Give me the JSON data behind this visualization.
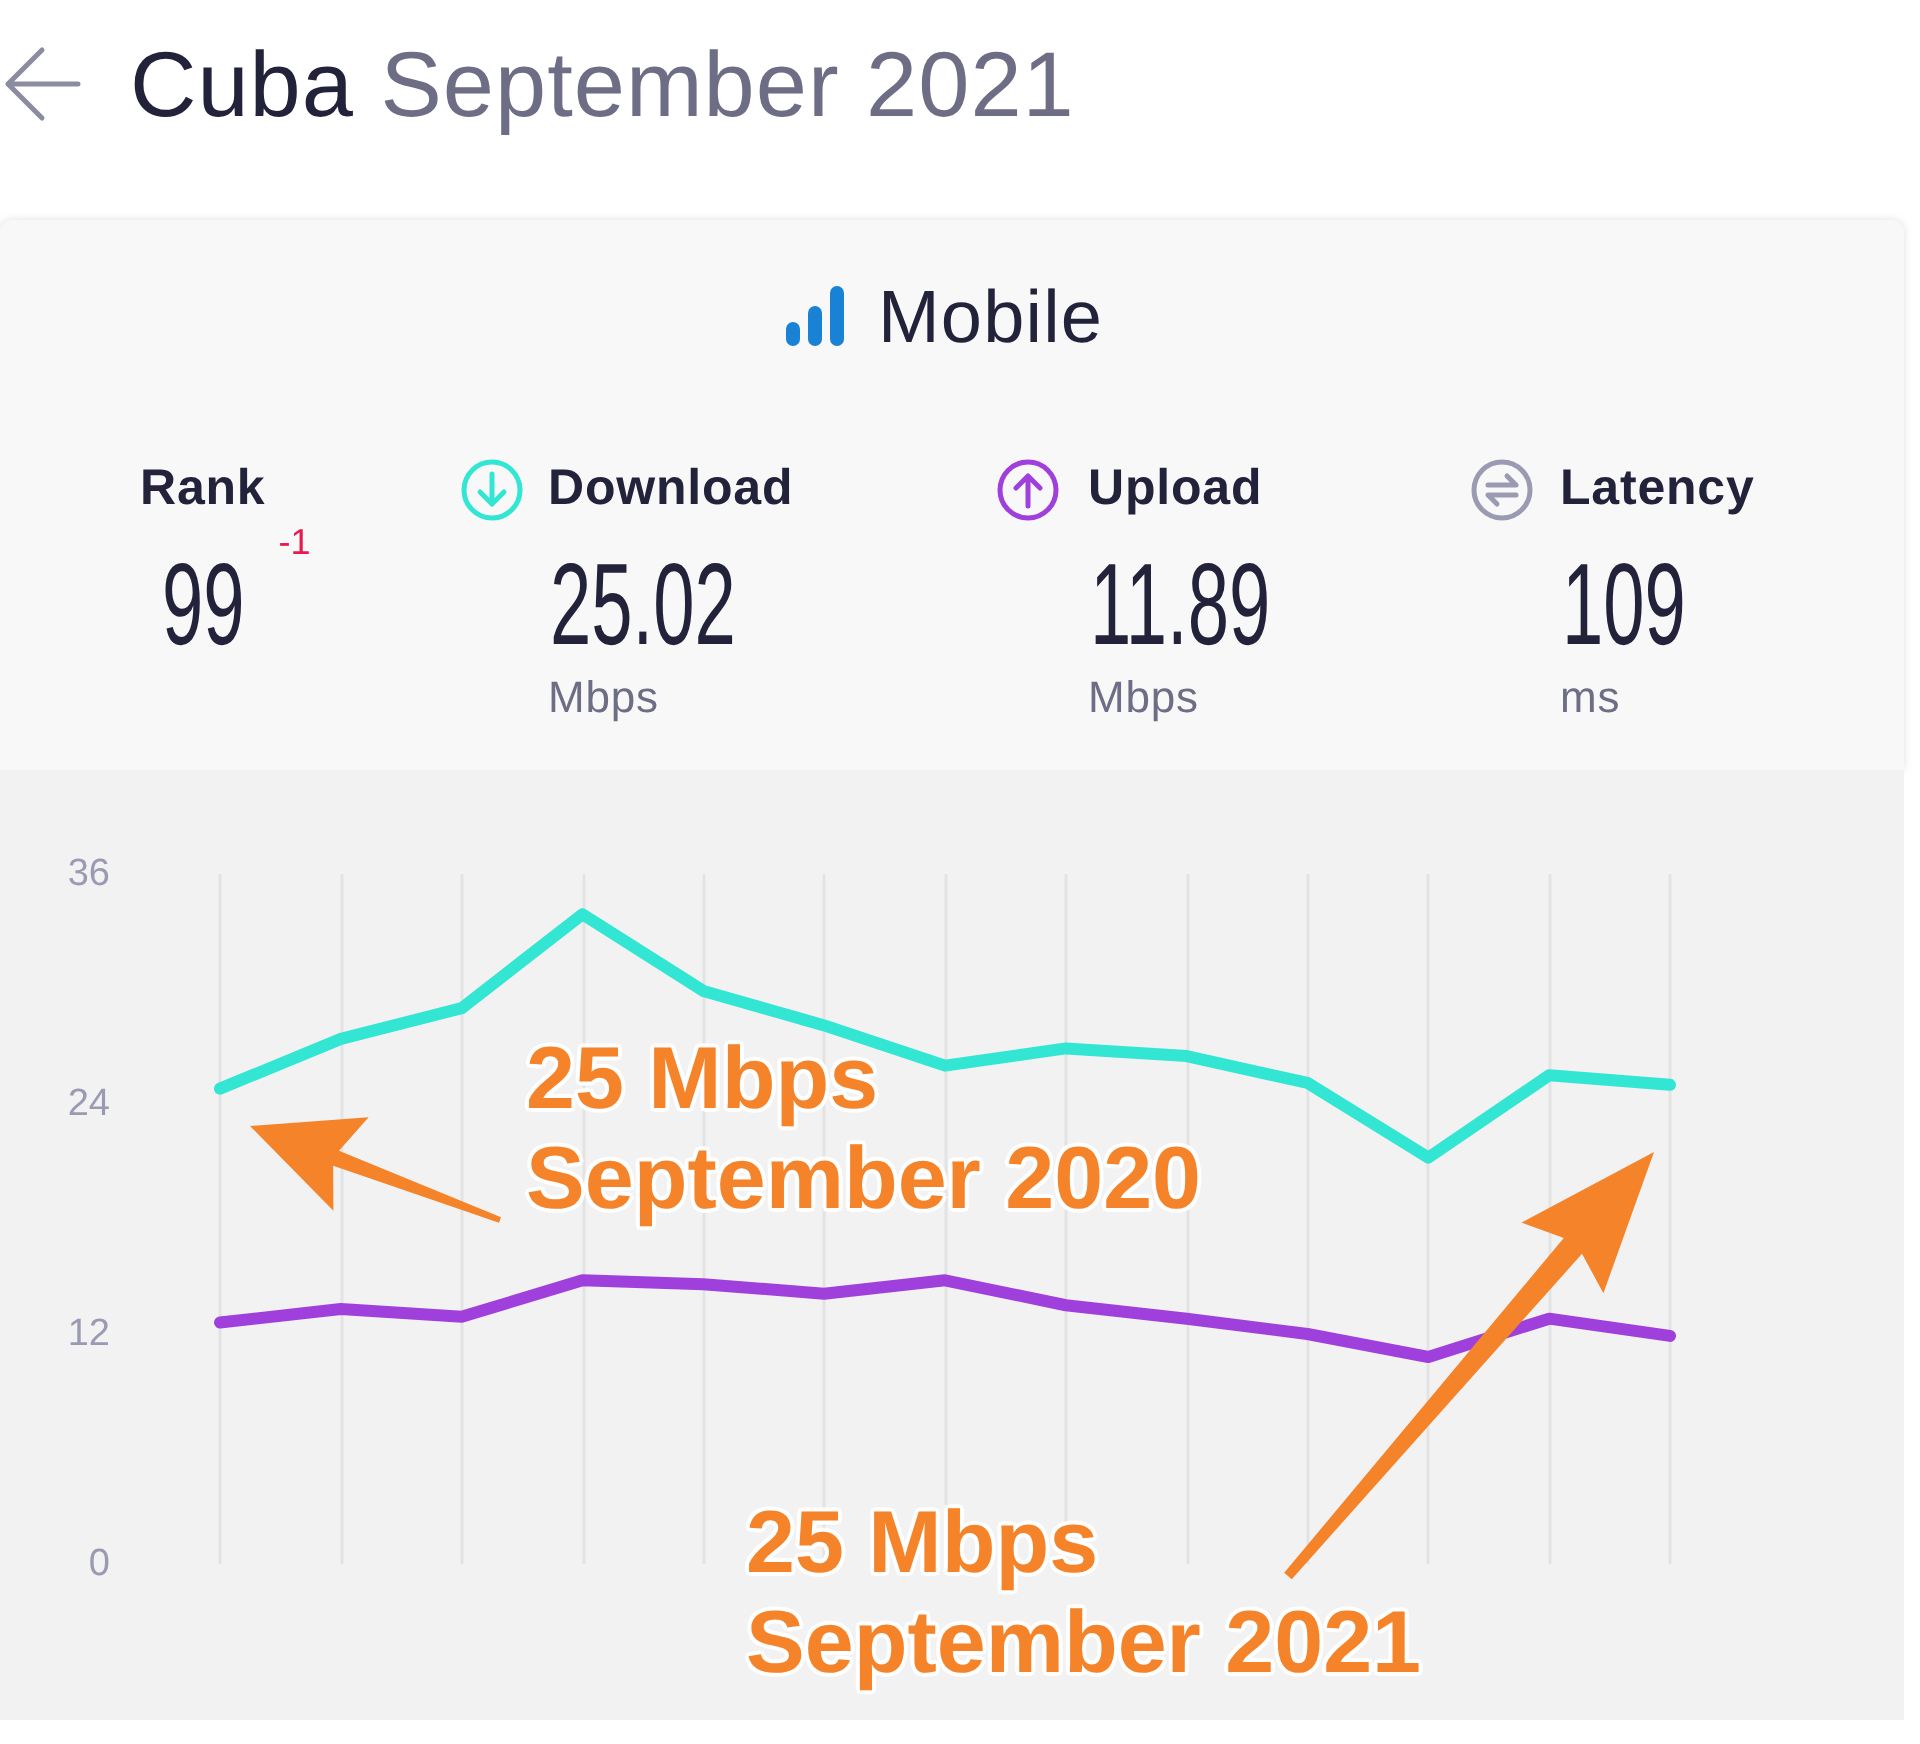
{
  "chart_data": [
    {
      "type": "other",
      "title": "Cuba September 2021",
      "subtitle": "Mobile",
      "categories": [
        "Rank",
        "Download",
        "Upload",
        "Latency"
      ],
      "values": [
        99,
        25.02,
        11.89,
        109
      ],
      "data_labels": true,
      "annotations": [
        "-1",
        "Mbps",
        "Mbps",
        "ms"
      ]
    },
    {
      "type": "line",
      "categories": [
        null,
        null,
        null,
        null,
        null,
        null,
        null,
        null,
        null,
        null,
        null,
        null,
        null
      ],
      "series": [
        {
          "color": "#33e6d3",
          "values": [
            24.8,
            27.4,
            29.0,
            33.9,
            29.9,
            28.1,
            26.0,
            26.9,
            26.5,
            25.1,
            21.2,
            25.5,
            25.0
          ]
        },
        {
          "color": "#a040dc",
          "values": [
            12.6,
            13.3,
            12.9,
            14.8,
            14.6,
            14.1,
            14.8,
            13.5,
            12.8,
            12.0,
            10.8,
            12.8,
            11.9
          ]
        }
      ],
      "ylim": [
        0,
        36
      ],
      "yticks": [
        0,
        12,
        24,
        36
      ],
      "grid": "x",
      "marker": "none",
      "tick_labels": "y",
      "annotations": [
        "25 Mbps September 2020",
        "25 Mbps September 2021"
      ]
    }
  ]
}
